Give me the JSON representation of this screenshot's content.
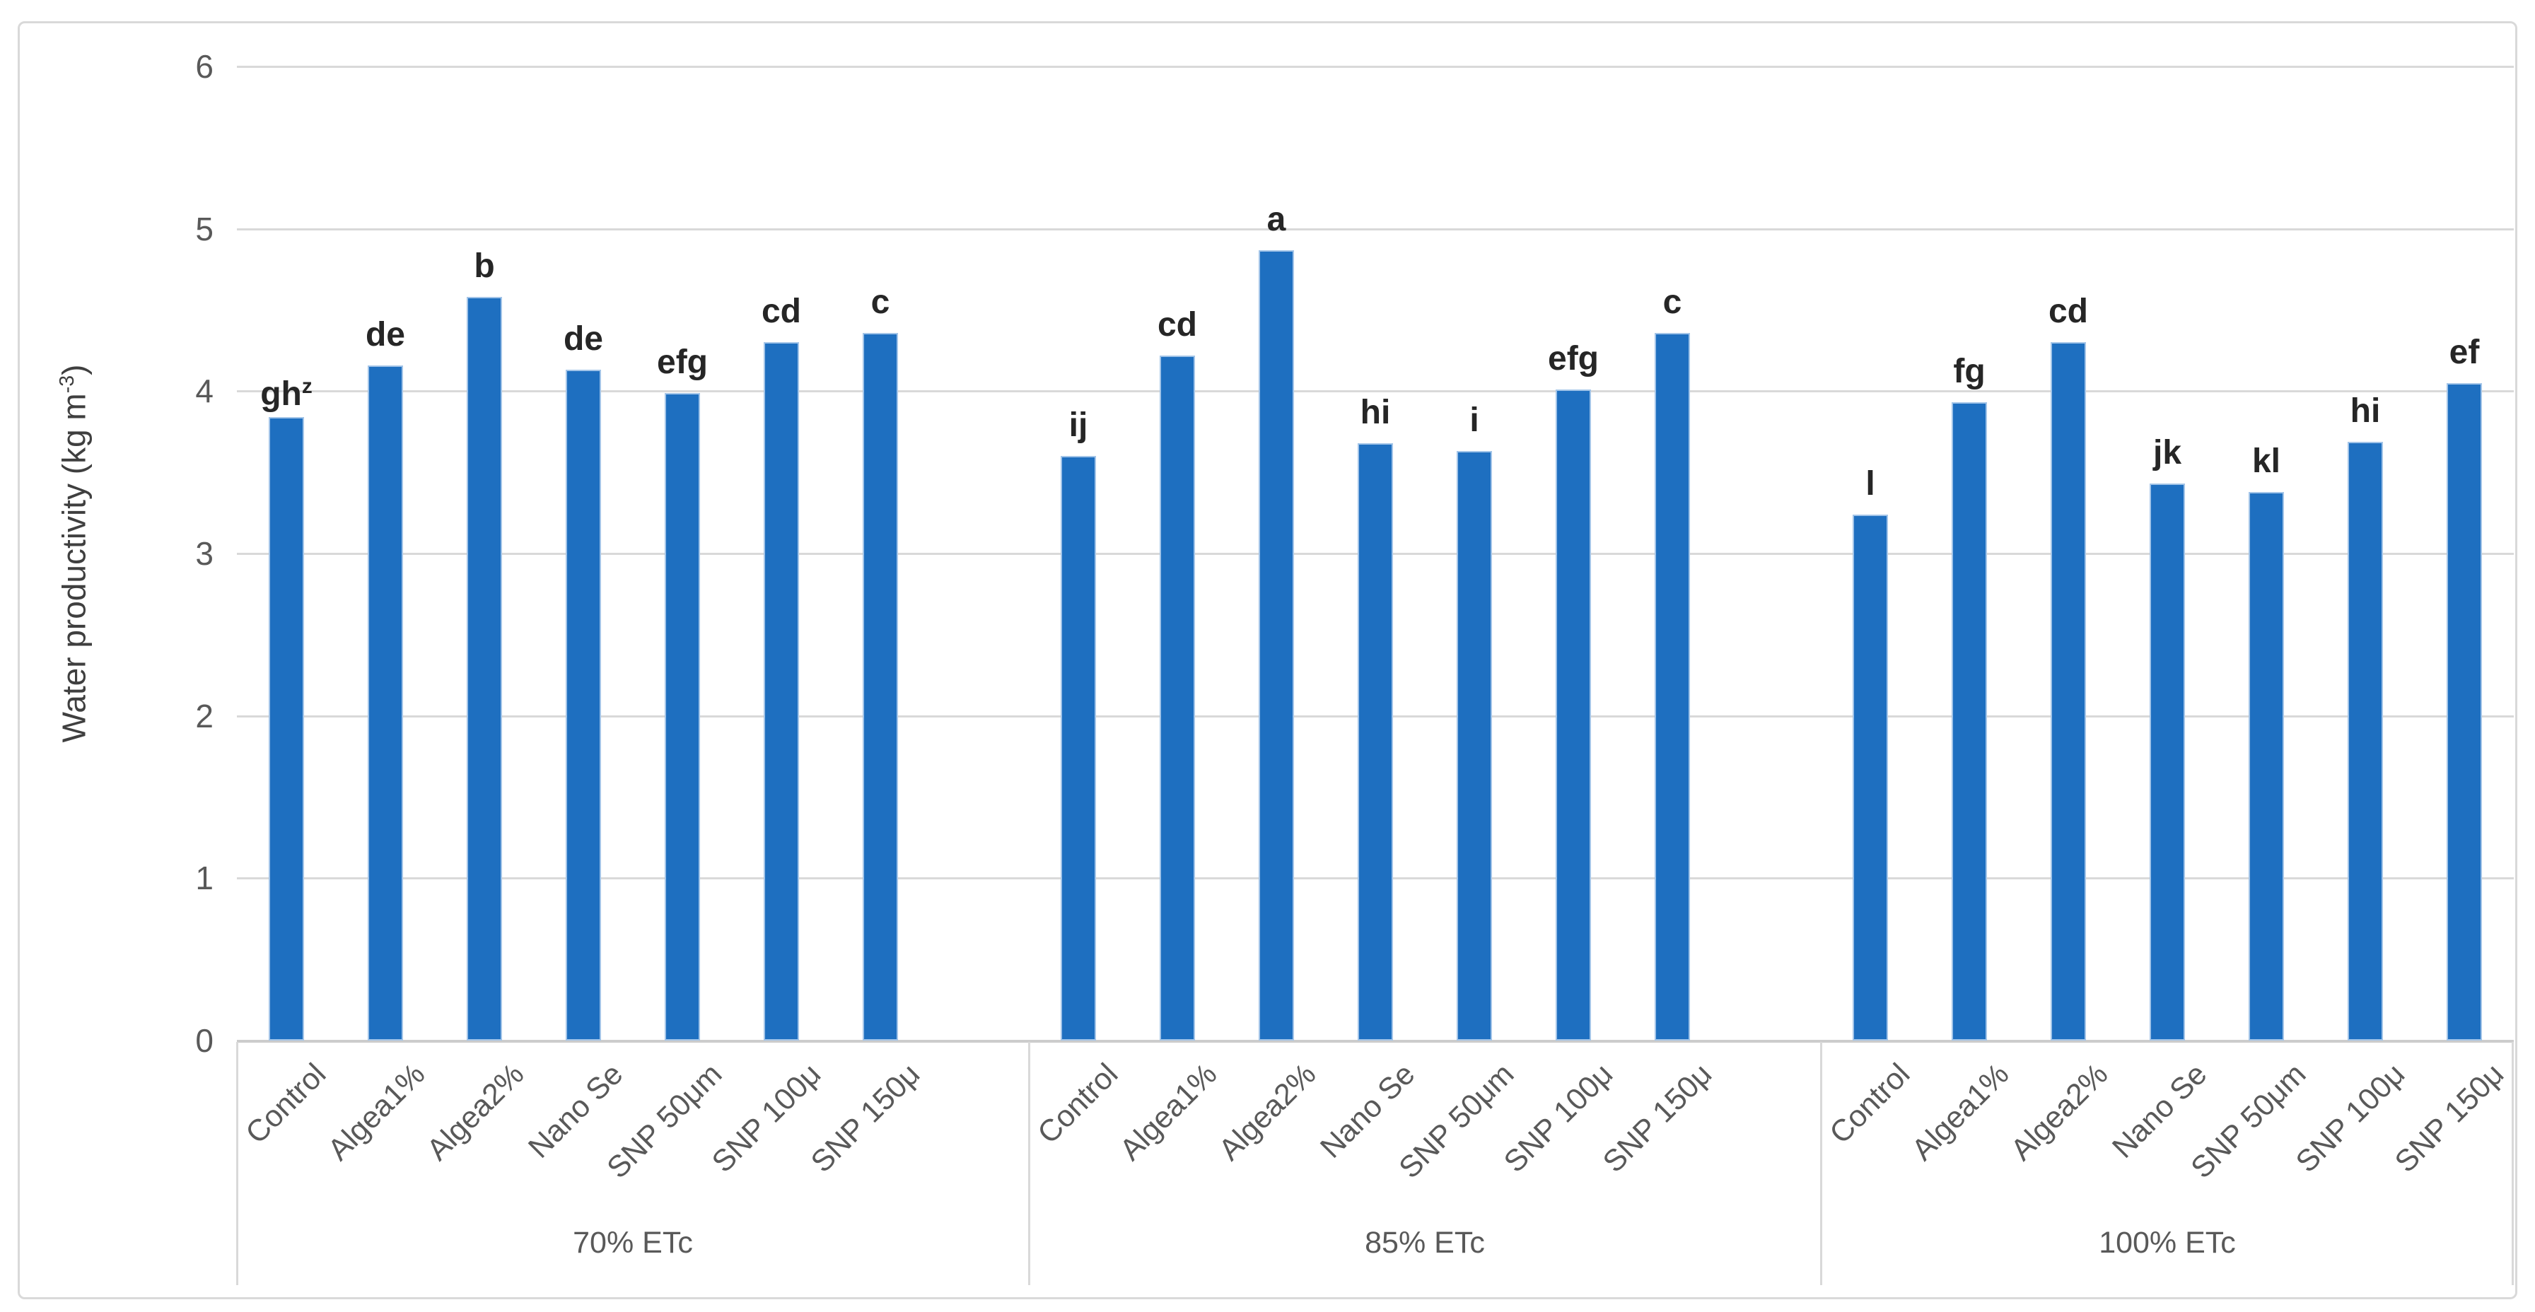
{
  "figure": {
    "background_color": "#FFFFFF",
    "border_color": "#D9D9D9"
  },
  "chart_data": {
    "type": "bar",
    "title": "",
    "ylabel_main": "Water productivity (kg m",
    "ylabel_sup": "-3",
    "ylabel_end": ")",
    "y_axis": {
      "min": 0,
      "max": 6,
      "tick_labels": [
        "0",
        "1",
        "2",
        "3",
        "4",
        "5",
        "6"
      ],
      "grid": "horizontal gridlines on"
    },
    "bar_color": "#1E6FC0",
    "bar_edge_color": "#A2C4E8",
    "gridline_color": "#D9D9D9",
    "axis_text_color": "#595959",
    "legend": "none",
    "categories": [
      "Control",
      "Algea1%",
      "Algea2%",
      "Nano Se",
      "SNP 50μm",
      "SNP 100μ",
      "SNP 150μ"
    ],
    "groups": [
      {
        "label": "70% ETc",
        "values": [
          3.84,
          4.16,
          4.58,
          4.13,
          3.99,
          4.3,
          4.36
        ],
        "letters": [
          "gh",
          "de",
          "b",
          "de",
          "efg",
          "cd",
          "c"
        ],
        "letter_sups": [
          "z",
          "",
          "",
          "",
          "",
          "",
          ""
        ]
      },
      {
        "label": "85% ETc",
        "values": [
          3.6,
          4.22,
          4.87,
          3.68,
          3.63,
          4.01,
          4.36
        ],
        "letters": [
          "ij",
          "cd",
          "a",
          "hi",
          "i",
          "efg",
          "c"
        ],
        "letter_sups": [
          "",
          "",
          "",
          "",
          "",
          "",
          ""
        ]
      },
      {
        "label": "100% ETc",
        "values": [
          3.24,
          3.93,
          4.3,
          3.43,
          3.38,
          3.69,
          4.05
        ],
        "letters": [
          "l",
          "fg",
          "cd",
          "jk",
          "kl",
          "hi",
          "ef"
        ],
        "letter_sups": [
          "",
          "",
          "",
          "",
          "",
          "",
          ""
        ]
      }
    ]
  }
}
